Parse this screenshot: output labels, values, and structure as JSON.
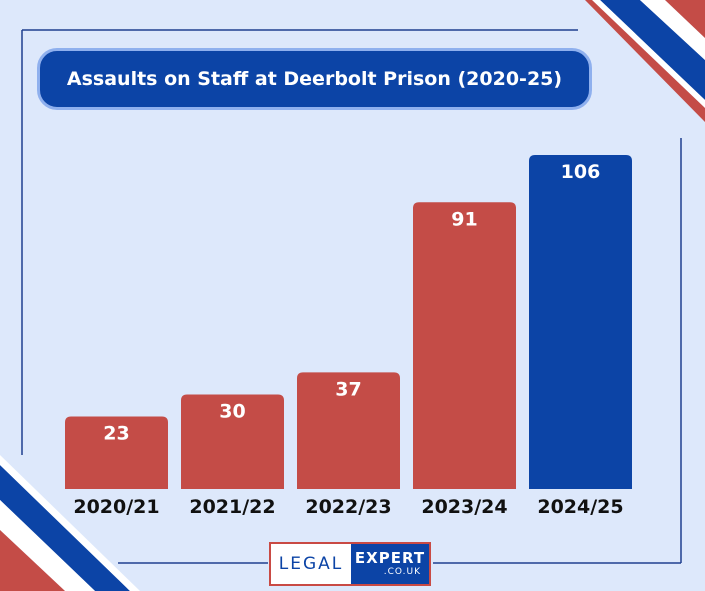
{
  "chart_data": {
    "type": "bar",
    "title": "Assaults on Staff at Deerbolt Prison (2020-25)",
    "categories": [
      "2020/21",
      "2021/22",
      "2022/23",
      "2023/24",
      "2024/25"
    ],
    "values": [
      23,
      30,
      37,
      91,
      106
    ],
    "data_labels": [
      "23",
      "30",
      "37",
      "91",
      "106"
    ],
    "bar_colors": [
      "#c44c47",
      "#c44c47",
      "#c44c47",
      "#c44c47",
      "#0c44a6"
    ],
    "xlabel": "",
    "ylabel": "",
    "ylim": [
      0,
      106
    ],
    "grid": false,
    "legend": "none"
  },
  "branding": {
    "logo_left": "LEGAL",
    "logo_right": "EXPERT",
    "logo_suffix": ".CO.UK"
  },
  "colors": {
    "background": "#dde8fb",
    "navy": "#0c44a6",
    "red": "#c44c47",
    "frame": "#1f3f8f"
  }
}
